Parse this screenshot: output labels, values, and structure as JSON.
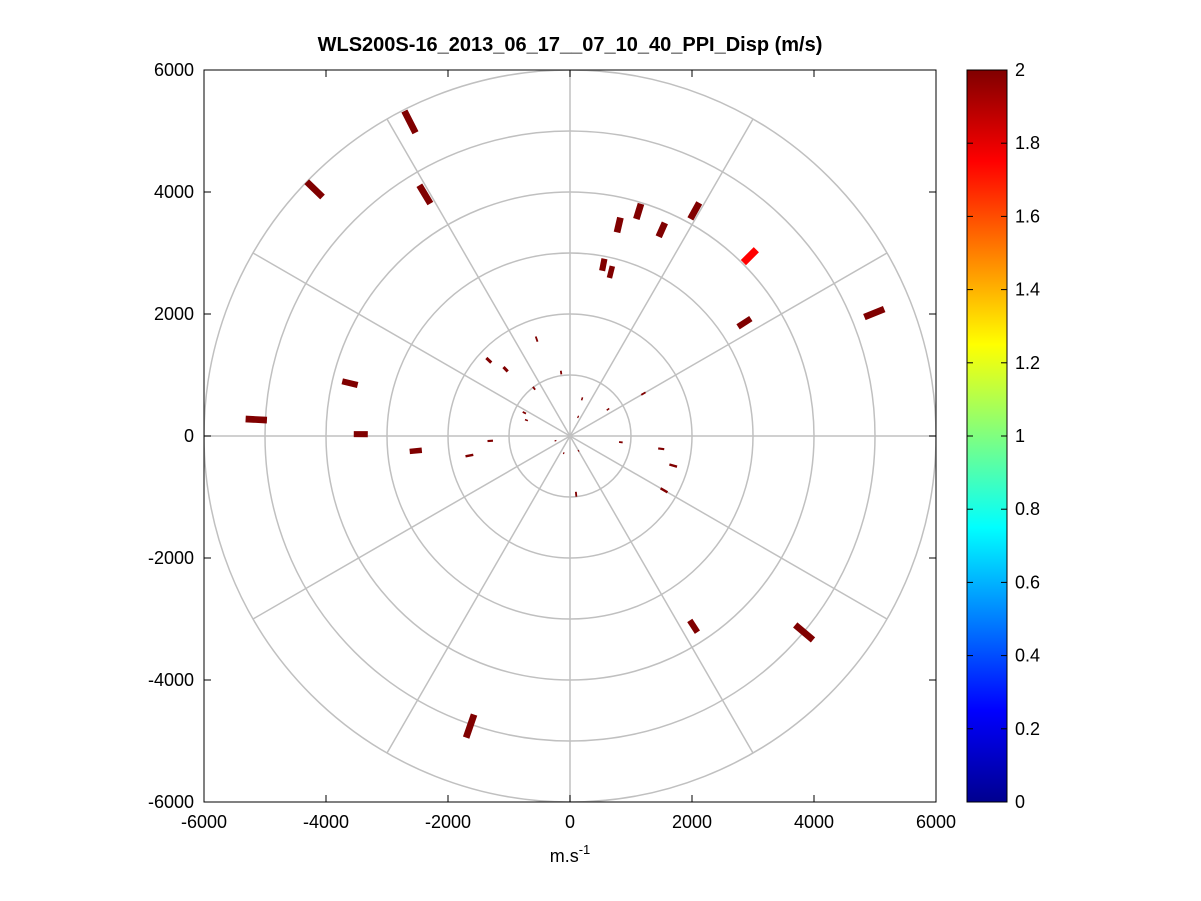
{
  "chart_data": {
    "type": "scatter",
    "subtype": "polar-ppi",
    "title": "WLS200S-16_2013_06_17__07_10_40_PPI_Disp (m/s)",
    "xlabel": "m.s",
    "xlabel_superscript": "-1",
    "ylabel": "",
    "xlim": [
      -6000,
      6000
    ],
    "ylim": [
      -6000,
      6000
    ],
    "xticks": [
      -6000,
      -4000,
      -2000,
      0,
      2000,
      4000,
      6000
    ],
    "yticks": [
      -6000,
      -4000,
      -2000,
      0,
      2000,
      4000,
      6000
    ],
    "xtick_labels": [
      "-6000",
      "-4000",
      "-2000",
      "0",
      "2000",
      "4000",
      "6000"
    ],
    "ytick_labels": [
      "-6000",
      "-4000",
      "-2000",
      "0",
      "2000",
      "4000",
      "6000"
    ],
    "polar_rings": [
      1000,
      2000,
      3000,
      4000,
      5000,
      6000
    ],
    "polar_spoke_step_deg": 30,
    "colorbar": {
      "colormap": "jet",
      "range": [
        0,
        2
      ],
      "ticks": [
        0,
        0.2,
        0.4,
        0.6,
        0.8,
        1,
        1.2,
        1.4,
        1.6,
        1.8,
        2
      ],
      "tick_labels": [
        "0",
        "0.2",
        "0.4",
        "0.6",
        "0.8",
        "1",
        "1.2",
        "1.4",
        "1.6",
        "1.8",
        "2"
      ]
    },
    "points": [
      {
        "az": 333,
        "r": 5780,
        "v": 2.0,
        "len": 400,
        "w": 110
      },
      {
        "az": 314,
        "r": 5820,
        "v": 2.0,
        "len": 360,
        "w": 110
      },
      {
        "az": 329,
        "r": 4620,
        "v": 2.0,
        "len": 350,
        "w": 110
      },
      {
        "az": 283.5,
        "r": 3710,
        "v": 2.0,
        "len": 260,
        "w": 100
      },
      {
        "az": 270.5,
        "r": 3430,
        "v": 2.0,
        "len": 230,
        "w": 100
      },
      {
        "az": 264.5,
        "r": 2540,
        "v": 2.0,
        "len": 200,
        "w": 90
      },
      {
        "az": 259,
        "r": 1680,
        "v": 2.0,
        "len": 130,
        "w": 40
      },
      {
        "az": 266.5,
        "r": 1310,
        "v": 2.0,
        "len": 90,
        "w": 35
      },
      {
        "az": 273,
        "r": 5150,
        "v": 2.0,
        "len": 350,
        "w": 110
      },
      {
        "az": 29,
        "r": 4220,
        "v": 2.0,
        "len": 300,
        "w": 110
      },
      {
        "az": 17,
        "r": 3850,
        "v": 2.0,
        "len": 260,
        "w": 110
      },
      {
        "az": 13,
        "r": 3550,
        "v": 2.0,
        "len": 250,
        "w": 110
      },
      {
        "az": 24,
        "r": 3700,
        "v": 2.0,
        "len": 250,
        "w": 110
      },
      {
        "az": 11,
        "r": 2860,
        "v": 2.0,
        "len": 200,
        "w": 100
      },
      {
        "az": 14,
        "r": 2770,
        "v": 2.0,
        "len": 200,
        "w": 90
      },
      {
        "az": 45,
        "r": 4170,
        "v": 1.75,
        "len": 300,
        "w": 120
      },
      {
        "az": 57,
        "r": 3410,
        "v": 2.0,
        "len": 250,
        "w": 100
      },
      {
        "az": 68,
        "r": 5380,
        "v": 2.0,
        "len": 350,
        "w": 110
      },
      {
        "az": 147,
        "r": 3720,
        "v": 2.0,
        "len": 230,
        "w": 100
      },
      {
        "az": 130,
        "r": 5010,
        "v": 2.0,
        "len": 380,
        "w": 110
      },
      {
        "az": 199,
        "r": 5030,
        "v": 2.0,
        "len": 400,
        "w": 110
      },
      {
        "az": 120,
        "r": 1780,
        "v": 2.0,
        "len": 130,
        "w": 40
      },
      {
        "az": 106,
        "r": 1760,
        "v": 2.0,
        "len": 130,
        "w": 40
      },
      {
        "az": 98,
        "r": 1510,
        "v": 2.0,
        "len": 100,
        "w": 35
      },
      {
        "az": 97,
        "r": 840,
        "v": 2.0,
        "len": 60,
        "w": 30
      },
      {
        "az": 174,
        "r": 960,
        "v": 2.0,
        "len": 80,
        "w": 30
      },
      {
        "az": 316,
        "r": 1520,
        "v": 2.0,
        "len": 100,
        "w": 50
      },
      {
        "az": 313,
        "r": 1820,
        "v": 2.0,
        "len": 110,
        "w": 50
      },
      {
        "az": 341,
        "r": 1680,
        "v": 2.0,
        "len": 90,
        "w": 30
      },
      {
        "az": 297,
        "r": 840,
        "v": 2.0,
        "len": 60,
        "w": 30
      },
      {
        "az": 323,
        "r": 980,
        "v": 2.0,
        "len": 60,
        "w": 30
      },
      {
        "az": 352,
        "r": 1050,
        "v": 2.0,
        "len": 60,
        "w": 30
      },
      {
        "az": 60,
        "r": 1390,
        "v": 2.0,
        "len": 80,
        "w": 30
      },
      {
        "az": 55,
        "r": 760,
        "v": 2.0,
        "len": 50,
        "w": 25
      },
      {
        "az": 18,
        "r": 640,
        "v": 2.0,
        "len": 50,
        "w": 25
      },
      {
        "az": 23,
        "r": 340,
        "v": 2.0,
        "len": 40,
        "w": 20
      },
      {
        "az": 290,
        "r": 760,
        "v": 2.0,
        "len": 50,
        "w": 25
      },
      {
        "az": 252,
        "r": 250,
        "v": 2.0,
        "len": 30,
        "w": 20
      },
      {
        "az": 200,
        "r": 300,
        "v": 2.0,
        "len": 30,
        "w": 20
      },
      {
        "az": 150,
        "r": 280,
        "v": 2.0,
        "len": 30,
        "w": 20
      }
    ]
  }
}
